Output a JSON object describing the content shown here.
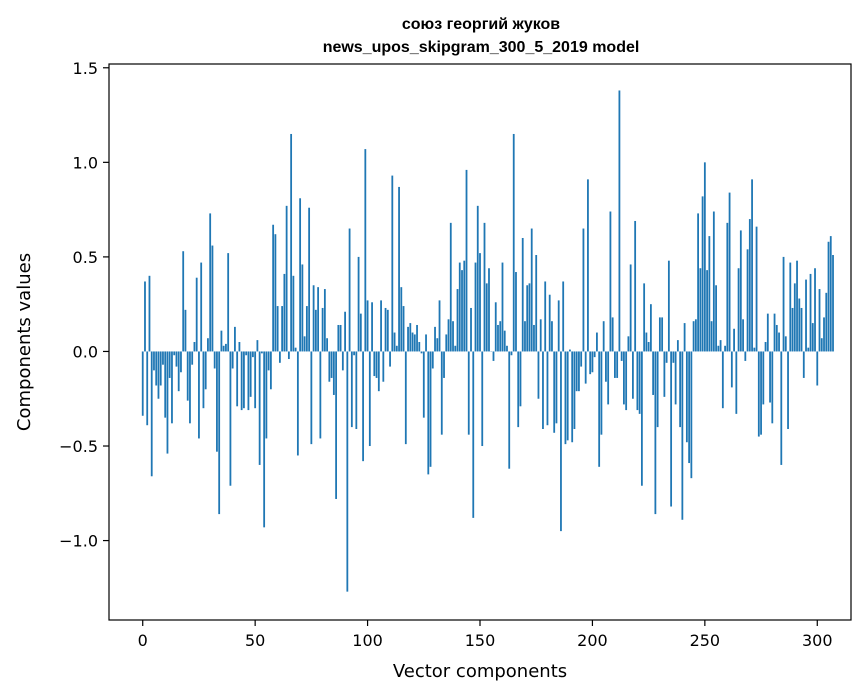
{
  "chart_data": {
    "type": "bar",
    "title": [
      "союз георгий жуков",
      "news_upos_skipgram_300_5_2019 model"
    ],
    "xlabel": "Vector components",
    "ylabel": "Components values",
    "xlim": [
      -15,
      315
    ],
    "ylim": [
      -1.42,
      1.52
    ],
    "xticks": [
      0,
      50,
      100,
      150,
      200,
      250,
      300
    ],
    "yticks": [
      -1.0,
      -0.5,
      0.0,
      0.5,
      1.0,
      1.5
    ],
    "ytick_labels": [
      "−1.0",
      "−0.5",
      "0.0",
      "0.5",
      "1.0",
      "1.5"
    ],
    "grid": false,
    "bar_color": "#1f77b4",
    "values": [
      -0.34,
      0.37,
      -0.39,
      0.4,
      -0.66,
      -0.1,
      -0.18,
      -0.25,
      -0.18,
      -0.07,
      -0.35,
      -0.54,
      -0.14,
      -0.38,
      -0.02,
      -0.08,
      -0.21,
      -0.11,
      0.53,
      0.22,
      -0.26,
      -0.38,
      -0.07,
      0.05,
      0.39,
      -0.46,
      0.47,
      -0.3,
      -0.2,
      0.07,
      0.73,
      0.56,
      -0.09,
      -0.53,
      -0.86,
      0.11,
      0.03,
      0.04,
      0.52,
      -0.71,
      -0.09,
      0.13,
      -0.29,
      0.05,
      -0.31,
      -0.3,
      -0.02,
      -0.31,
      -0.24,
      -0.03,
      -0.3,
      0.06,
      -0.6,
      -0.01,
      -0.93,
      -0.46,
      -0.1,
      -0.2,
      0.67,
      0.62,
      0.24,
      -0.06,
      0.24,
      0.41,
      0.77,
      -0.04,
      1.15,
      0.4,
      0.02,
      -0.55,
      0.81,
      0.46,
      0.08,
      0.24,
      0.76,
      -0.49,
      0.35,
      0.22,
      0.34,
      -0.46,
      0.23,
      0.33,
      0.07,
      -0.16,
      -0.14,
      -0.23,
      -0.78,
      0.14,
      0.14,
      -0.1,
      0.21,
      -1.27,
      0.65,
      -0.4,
      -0.02,
      -0.41,
      0.5,
      0.2,
      -0.58,
      1.07,
      0.27,
      -0.5,
      0.26,
      -0.13,
      -0.14,
      -0.21,
      0.27,
      -0.16,
      0.23,
      0.22,
      -0.08,
      0.93,
      0.1,
      0.03,
      0.87,
      0.34,
      0.24,
      -0.49,
      0.13,
      0.15,
      0.1,
      0.09,
      0.14,
      0.05,
      -0.01,
      -0.35,
      0.09,
      -0.65,
      -0.61,
      -0.09,
      0.13,
      0.07,
      0.27,
      -0.44,
      -0.14,
      0.09,
      0.17,
      0.68,
      0.16,
      0.03,
      0.33,
      0.47,
      0.43,
      0.48,
      0.96,
      -0.44,
      0.23,
      -0.88,
      0.47,
      0.77,
      0.52,
      -0.5,
      0.68,
      0.36,
      0.44,
      0.0,
      -0.05,
      0.26,
      0.14,
      0.16,
      0.47,
      0.11,
      0.03,
      -0.62,
      -0.02,
      1.15,
      0.42,
      -0.4,
      -0.29,
      0.6,
      0.16,
      0.35,
      0.36,
      0.65,
      0.14,
      0.51,
      -0.25,
      0.17,
      -0.41,
      0.37,
      -0.39,
      0.3,
      0.16,
      -0.43,
      -0.38,
      0.27,
      -0.95,
      0.37,
      -0.49,
      -0.47,
      0.01,
      -0.48,
      -0.41,
      -0.21,
      -0.21,
      -0.08,
      0.65,
      -0.17,
      0.91,
      -0.12,
      -0.11,
      -0.03,
      0.1,
      -0.61,
      -0.44,
      0.16,
      -0.16,
      -0.28,
      0.74,
      0.18,
      -0.14,
      -0.14,
      1.38,
      -0.05,
      -0.28,
      -0.31,
      0.08,
      0.46,
      -0.25,
      0.69,
      -0.31,
      -0.33,
      -0.71,
      0.36,
      0.1,
      0.05,
      0.25,
      -0.23,
      -0.86,
      -0.4,
      0.18,
      0.18,
      -0.24,
      -0.06,
      0.48,
      -0.82,
      -0.06,
      -0.28,
      0.06,
      -0.4,
      -0.89,
      0.15,
      -0.48,
      -0.59,
      -0.67,
      0.16,
      0.17,
      0.73,
      0.44,
      0.82,
      1.0,
      0.43,
      0.61,
      0.16,
      0.74,
      0.35,
      0.03,
      0.06,
      -0.3,
      0.03,
      0.68,
      0.84,
      -0.19,
      0.12,
      -0.33,
      0.44,
      0.64,
      0.17,
      -0.05,
      0.54,
      0.7,
      0.91,
      0.02,
      0.66,
      -0.45,
      -0.44,
      -0.28,
      0.05,
      0.2,
      -0.27,
      -0.38,
      0.2,
      0.14,
      0.1,
      -0.6,
      0.5,
      0.08,
      -0.41,
      0.47,
      0.23,
      0.36,
      0.48,
      0.28,
      0.23,
      -0.14,
      0.38,
      0.02,
      0.41,
      0.15,
      0.44,
      -0.18,
      0.33,
      0.07,
      0.18,
      0.31,
      0.58,
      0.61,
      0.51
    ]
  }
}
